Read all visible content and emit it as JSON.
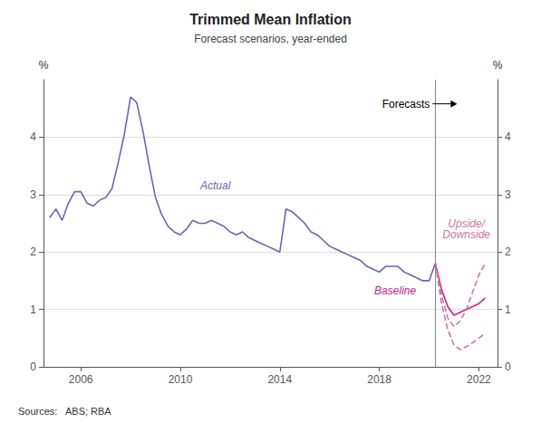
{
  "chart_data": {
    "type": "line",
    "title": "Trimmed Mean Inflation",
    "subtitle": "Forecast scenarios, year-ended",
    "y_label": "%",
    "y2_label": "%",
    "source": "Sources:   ABS; RBA",
    "forecast_label": "Forecasts",
    "forecast_line_x": 2020.25,
    "forecast_line_color": "#888888",
    "grid": true,
    "xlim": [
      2004.5,
      2022.75
    ],
    "xticks": [
      2006,
      2010,
      2014,
      2018,
      2022
    ],
    "ylim": [
      0,
      5
    ],
    "yticks": [
      0,
      1,
      2,
      3,
      4
    ],
    "y2lim": [
      0,
      5
    ],
    "y2ticks": [
      0,
      1,
      2,
      3,
      4
    ],
    "series": [
      {
        "name": "Actual",
        "color": "#6666bb",
        "line_style": "solid",
        "x": [
          2004.75,
          2005.0,
          2005.25,
          2005.5,
          2005.75,
          2006.0,
          2006.25,
          2006.5,
          2006.75,
          2007.0,
          2007.25,
          2007.5,
          2007.75,
          2008.0,
          2008.25,
          2008.5,
          2008.75,
          2009.0,
          2009.25,
          2009.5,
          2009.75,
          2010.0,
          2010.25,
          2010.5,
          2010.75,
          2011.0,
          2011.25,
          2011.5,
          2011.75,
          2012.0,
          2012.25,
          2012.5,
          2012.75,
          2013.0,
          2013.25,
          2013.5,
          2013.75,
          2014.0,
          2014.25,
          2014.5,
          2014.75,
          2015.0,
          2015.25,
          2015.5,
          2015.75,
          2016.0,
          2016.25,
          2016.5,
          2016.75,
          2017.0,
          2017.25,
          2017.5,
          2017.75,
          2018.0,
          2018.25,
          2018.5,
          2018.75,
          2019.0,
          2019.25,
          2019.5,
          2019.75,
          2020.0,
          2020.25
        ],
        "values": [
          2.6,
          2.75,
          2.55,
          2.85,
          3.05,
          3.05,
          2.85,
          2.8,
          2.9,
          2.95,
          3.1,
          3.55,
          4.05,
          4.7,
          4.6,
          4.1,
          3.5,
          2.95,
          2.65,
          2.45,
          2.35,
          2.3,
          2.4,
          2.55,
          2.5,
          2.5,
          2.55,
          2.5,
          2.45,
          2.35,
          2.3,
          2.35,
          2.25,
          2.2,
          2.15,
          2.1,
          2.05,
          2.0,
          2.75,
          2.7,
          2.6,
          2.5,
          2.35,
          2.3,
          2.2,
          2.1,
          2.05,
          2.0,
          1.95,
          1.9,
          1.85,
          1.75,
          1.7,
          1.65,
          1.75,
          1.75,
          1.75,
          1.65,
          1.6,
          1.55,
          1.5,
          1.5,
          1.8
        ]
      },
      {
        "name": "Baseline",
        "color": "#cc2288",
        "line_style": "solid",
        "x": [
          2020.25,
          2020.5,
          2020.75,
          2021.0,
          2021.25,
          2021.5,
          2021.75,
          2022.0,
          2022.25
        ],
        "values": [
          1.8,
          1.35,
          1.05,
          0.9,
          0.95,
          1.0,
          1.05,
          1.1,
          1.2
        ]
      },
      {
        "name": "Upside/\nDownside",
        "color": "#cc7799",
        "line_style": "dashed",
        "x": [
          2020.25,
          2020.5,
          2020.75,
          2021.0,
          2021.25,
          2021.5,
          2021.75,
          2022.0,
          2022.25
        ],
        "values": [
          1.8,
          1.25,
          0.85,
          0.7,
          0.8,
          1.0,
          1.3,
          1.6,
          1.8
        ]
      },
      {
        "name": "Upside/\nDownside",
        "color": "#cc7799",
        "line_style": "dashed",
        "x": [
          2020.25,
          2020.5,
          2020.75,
          2021.0,
          2021.25,
          2021.5,
          2021.75,
          2022.0,
          2022.25
        ],
        "values": [
          1.8,
          1.1,
          0.65,
          0.38,
          0.3,
          0.35,
          0.42,
          0.5,
          0.58
        ]
      }
    ]
  }
}
